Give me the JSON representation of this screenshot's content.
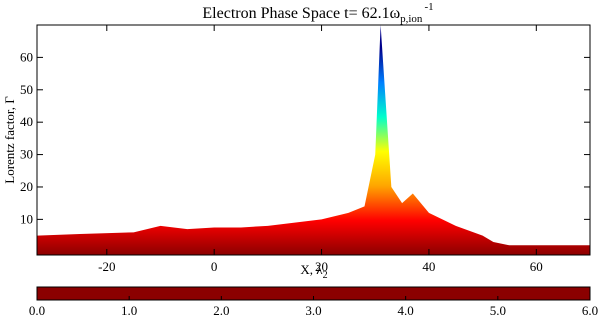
{
  "chart_data": {
    "type": "area",
    "title": {
      "text": "Electron Phase Space t=  62.1ω",
      "subscript": "p,ion",
      "superscript": "-1"
    },
    "x_label": {
      "text": "X, λ",
      "subscript": "2"
    },
    "y_label": "Lorentz factor, Γ",
    "x": [
      -33,
      -25,
      -15,
      -10,
      -5,
      0,
      5,
      10,
      15,
      20,
      25,
      28,
      30,
      31,
      32,
      33,
      35,
      37,
      40,
      45,
      50,
      52,
      55,
      70
    ],
    "values": [
      5,
      5.5,
      6,
      8,
      7,
      7.5,
      7.5,
      8,
      9,
      10,
      12,
      14,
      30,
      70,
      45,
      20,
      15,
      18,
      12,
      8,
      5,
      3,
      2,
      2
    ],
    "xlim": [
      -33,
      70
    ],
    "xticks": [
      -20,
      0,
      20,
      40,
      60
    ],
    "ylim": [
      -1,
      70
    ],
    "yticks": [
      10,
      20,
      30,
      40,
      50,
      60
    ],
    "colormap": [
      "#8b0000",
      "#ff0000",
      "#ffa500",
      "#ffff00",
      "#00ffcc",
      "#0080ff",
      "#00008b"
    ],
    "colorbar": {
      "lim": [
        0,
        6
      ],
      "ticks": [
        {
          "value": 0,
          "label": "0.0"
        },
        {
          "value": 1,
          "label": "1.0"
        },
        {
          "value": 2,
          "label": "2.0"
        },
        {
          "value": 3,
          "label": "3.0"
        },
        {
          "value": 4,
          "label": "4.0"
        },
        {
          "value": 5,
          "label": "5.0"
        },
        {
          "value": 6,
          "label": "6.0"
        }
      ]
    }
  }
}
